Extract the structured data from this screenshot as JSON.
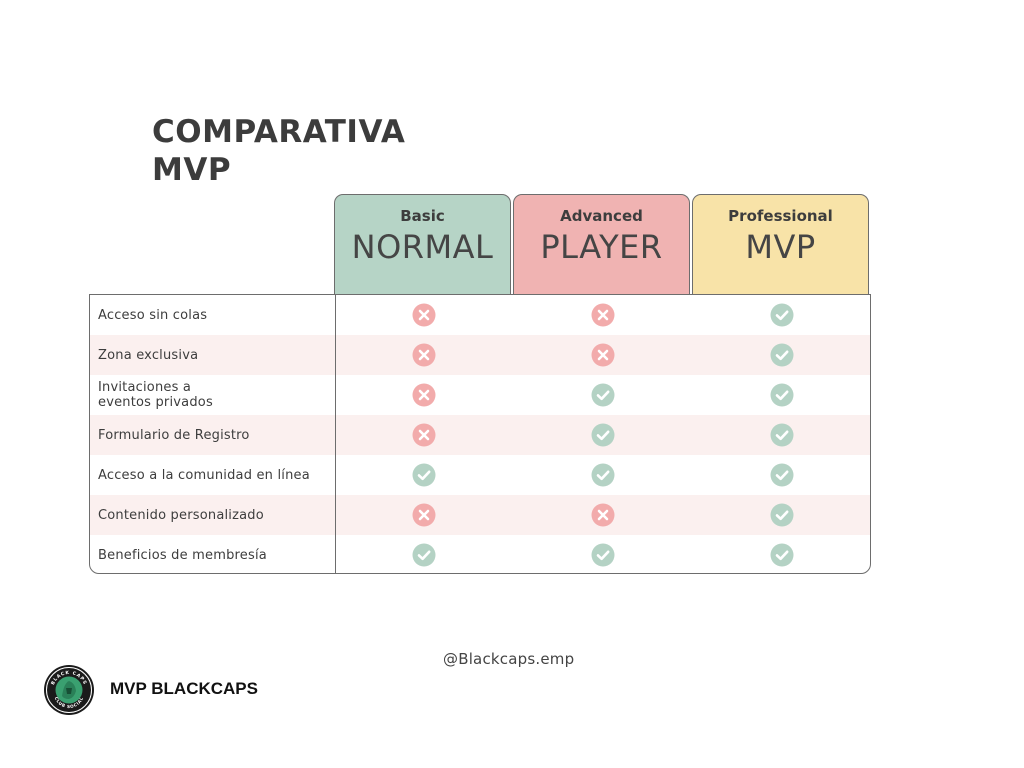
{
  "title": {
    "line1": "COMPARATIVA",
    "line2": "MVP"
  },
  "plans": [
    {
      "tier": "Basic",
      "name": "NORMAL",
      "color": "#b6d4c6"
    },
    {
      "tier": "Advanced",
      "name": "PLAYER",
      "color": "#f0b3b2"
    },
    {
      "tier": "Professional",
      "name": "MVP",
      "color": "#f8e3a8"
    }
  ],
  "features": [
    {
      "label": "Acceso sin colas",
      "values": [
        false,
        false,
        true
      ]
    },
    {
      "label": "Zona exclusiva",
      "values": [
        false,
        false,
        true
      ]
    },
    {
      "label": "Invitaciones a\neventos privados",
      "values": [
        false,
        true,
        true
      ]
    },
    {
      "label": "Formulario de Registro",
      "values": [
        false,
        true,
        true
      ]
    },
    {
      "label": "Acceso a la comunidad en línea",
      "values": [
        true,
        true,
        true
      ]
    },
    {
      "label": "Contenido personalizado",
      "values": [
        false,
        false,
        true
      ]
    },
    {
      "label": "Beneficios de membresía",
      "values": [
        true,
        true,
        true
      ]
    }
  ],
  "colors": {
    "check": "#b4d2c4",
    "cross": "#f2abab",
    "row_alt": "#fbf0ef",
    "border": "#6d6d6d"
  },
  "icons": {
    "included": "check-circle-icon",
    "excluded": "x-circle-icon"
  },
  "footer": {
    "handle": "@Blackcaps.emp",
    "brand": "MVP BLACKCAPS",
    "logo_top_text": "BLACK CAPS",
    "logo_bottom_text": "CLUB SOCIAL"
  }
}
